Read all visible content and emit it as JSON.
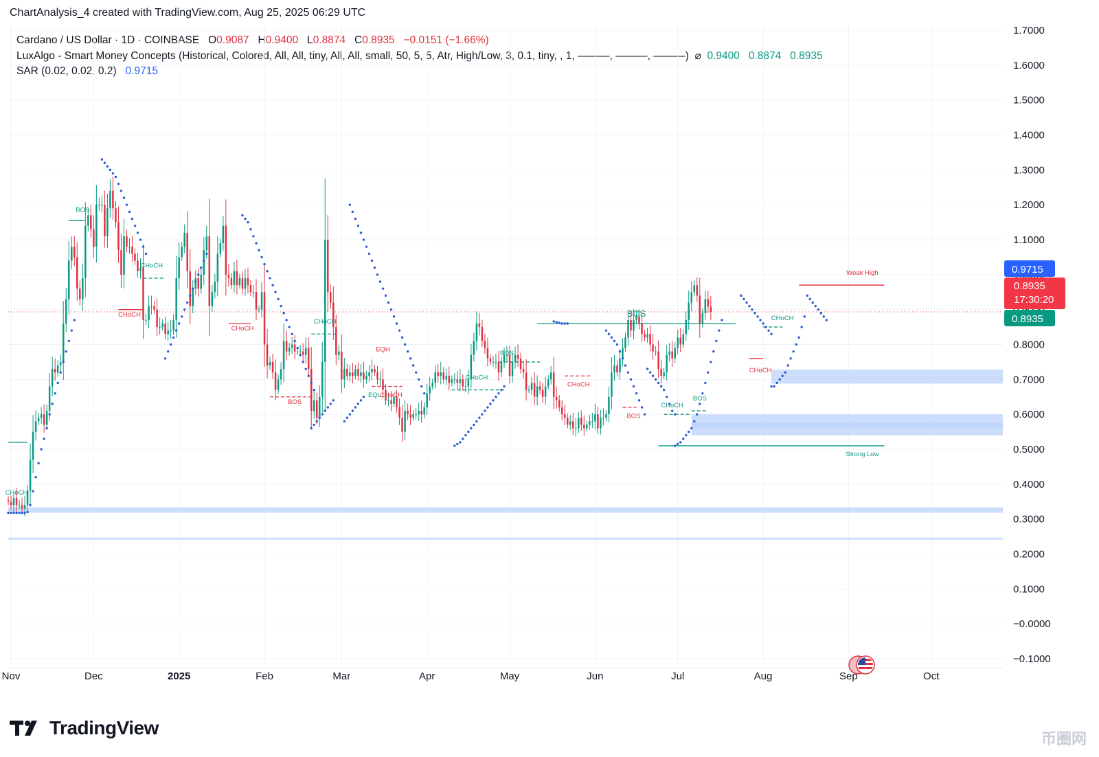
{
  "header": {
    "created_line": "ChartAnalysis_4 created with TradingView.com, Aug 25, 2025 06:29 UTC"
  },
  "legend": {
    "symbol": "Cardano / US Dollar · 1D · COINBASE",
    "o_label": "O",
    "o_value": "0.9087",
    "h_label": "H",
    "h_value": "0.9400",
    "l_label": "L",
    "l_value": "0.8874",
    "c_label": "C",
    "c_value": "0.8935",
    "change": "−0.0151 (−1.66%)",
    "indicator": "LuxAlgo - Smart Money Concepts (Historical, Colored, All, All, tiny, All, All, small, 50, 5, 5, Atr, High/Low, 3, 0.1, tiny, , 1, ———, ———, ———)",
    "indicator_symbol": "⌀",
    "indicator_values": [
      "0.9400",
      "0.8874",
      "0.8935"
    ],
    "sar_label": "SAR (0.02, 0.02, 0.2)",
    "sar_value": "0.9715"
  },
  "price_tags": {
    "sar": "0.9715",
    "last_price": "0.8935",
    "countdown": "17:30:20",
    "close": "0.8935"
  },
  "footer": {
    "logo_text": "TradingView",
    "watermark": "币圈网"
  },
  "colors": {
    "up": "#089981",
    "down": "#e0303f",
    "sar": "#2a5bd7",
    "zone": "#bcd3fb"
  },
  "chart_data": {
    "type": "candlestick",
    "ylim": [
      -0.1,
      1.7
    ],
    "y_ticks": [
      "1.7000",
      "1.6000",
      "1.5000",
      "1.4000",
      "1.3000",
      "1.2000",
      "1.1000",
      "1.0000",
      "0.9000",
      "0.8000",
      "0.7000",
      "0.6000",
      "0.5000",
      "0.4000",
      "0.3000",
      "0.2000",
      "0.1000",
      "−0.0000",
      "−0.1000"
    ],
    "y_tick_values": [
      1.7,
      1.6,
      1.5,
      1.4,
      1.3,
      1.2,
      1.1,
      1.0,
      0.9,
      0.8,
      0.7,
      0.6,
      0.5,
      0.4,
      0.3,
      0.2,
      0.1,
      0.0,
      -0.1
    ],
    "x_ticks": [
      "Nov",
      "Dec",
      "2025",
      "Feb",
      "Mar",
      "Apr",
      "May",
      "Jun",
      "Jul",
      "Aug",
      "Sep",
      "Oct"
    ],
    "x_tick_dates": [
      "2024-11-01",
      "2024-12-01",
      "2025-01-01",
      "2025-02-01",
      "2025-03-01",
      "2025-04-01",
      "2025-05-01",
      "2025-06-01",
      "2025-07-01",
      "2025-08-01",
      "2025-09-01",
      "2025-10-01"
    ],
    "x_range": [
      "2024-10-31",
      "2025-10-27"
    ],
    "date_start": "2024-10-31",
    "current_close": 0.8935,
    "closes": [
      0.35,
      0.34,
      0.36,
      0.34,
      0.34,
      0.33,
      0.34,
      0.38,
      0.47,
      0.55,
      0.58,
      0.59,
      0.6,
      0.57,
      0.61,
      0.68,
      0.73,
      0.72,
      0.74,
      0.75,
      0.86,
      0.93,
      1.04,
      1.08,
      1.05,
      0.96,
      0.93,
      0.99,
      1.14,
      1.17,
      1.13,
      1.08,
      1.2,
      1.2,
      1.2,
      1.11,
      1.19,
      1.24,
      1.19,
      1.15,
      1.07,
      1.0,
      1.11,
      1.08,
      1.08,
      1.06,
      1.04,
      1.01,
      1.02,
      0.87,
      0.87,
      0.91,
      0.91,
      0.9,
      0.85,
      0.85,
      0.86,
      0.83,
      0.84,
      0.84,
      0.87,
      0.99,
      1.05,
      1.08,
      1.12,
      1.01,
      0.91,
      0.96,
      0.99,
      0.96,
      1.0,
      1.07,
      1.11,
      0.91,
      0.95,
      0.98,
      1.06,
      1.09,
      1.14,
      1.0,
      0.99,
      0.97,
      1.01,
      0.97,
      0.99,
      0.96,
      0.99,
      0.97,
      0.95,
      0.95,
      0.9,
      0.9,
      0.95,
      0.8,
      0.74,
      0.75,
      0.72,
      0.67,
      0.7,
      0.73,
      0.81,
      0.78,
      0.79,
      0.8,
      0.78,
      0.78,
      0.78,
      0.77,
      0.79,
      0.73,
      0.61,
      0.64,
      0.59,
      0.65,
      0.75,
      1.1,
      0.95,
      0.92,
      0.85,
      0.77,
      0.78,
      0.7,
      0.73,
      0.71,
      0.72,
      0.71,
      0.73,
      0.71,
      0.72,
      0.7,
      0.71,
      0.72,
      0.73,
      0.72,
      0.7,
      0.7,
      0.67,
      0.64,
      0.64,
      0.63,
      0.65,
      0.62,
      0.59,
      0.55,
      0.61,
      0.6,
      0.59,
      0.6,
      0.6,
      0.61,
      0.6,
      0.62,
      0.66,
      0.68,
      0.69,
      0.72,
      0.71,
      0.72,
      0.7,
      0.71,
      0.69,
      0.7,
      0.7,
      0.69,
      0.7,
      0.68,
      0.68,
      0.7,
      0.77,
      0.81,
      0.86,
      0.85,
      0.81,
      0.79,
      0.76,
      0.75,
      0.75,
      0.75,
      0.72,
      0.75,
      0.77,
      0.77,
      0.71,
      0.75,
      0.77,
      0.76,
      0.73,
      0.72,
      0.67,
      0.67,
      0.69,
      0.65,
      0.68,
      0.67,
      0.65,
      0.68,
      0.7,
      0.72,
      0.65,
      0.64,
      0.62,
      0.6,
      0.59,
      0.57,
      0.58,
      0.56,
      0.56,
      0.59,
      0.57,
      0.56,
      0.57,
      0.58,
      0.58,
      0.6,
      0.56,
      0.59,
      0.59,
      0.6,
      0.65,
      0.72,
      0.74,
      0.72,
      0.76,
      0.79,
      0.82,
      0.87,
      0.84,
      0.87,
      0.88,
      0.86,
      0.83,
      0.82,
      0.83,
      0.8,
      0.78,
      0.78,
      0.73,
      0.71,
      0.72,
      0.77,
      0.78,
      0.76,
      0.79,
      0.82,
      0.8,
      0.83,
      0.87,
      0.92,
      0.95,
      0.97,
      0.94,
      0.86,
      0.89,
      0.93,
      0.9087,
      0.8935
    ],
    "sar_segments": [
      {
        "start": "2024-10-31",
        "values": [
          0.318,
          0.318,
          0.318,
          0.318,
          0.318,
          0.318,
          0.318,
          0.32,
          0.34,
          0.38,
          0.42,
          0.46,
          0.5,
          0.53,
          0.56,
          0.6,
          0.63,
          0.66,
          0.69,
          0.72,
          0.75,
          0.78,
          0.81,
          0.84,
          0.87
        ]
      },
      {
        "start": "2024-12-04",
        "values": [
          1.33,
          1.32,
          1.31,
          1.3,
          1.29,
          1.28,
          1.26,
          1.24,
          1.22,
          1.2,
          1.18,
          1.16,
          1.14,
          1.12,
          1.1,
          1.08,
          1.06
        ]
      },
      {
        "start": "2024-12-27",
        "values": [
          0.76,
          0.78,
          0.8,
          0.82,
          0.84,
          0.86,
          0.88,
          0.9,
          0.92,
          0.94,
          0.96,
          0.98,
          1.0,
          1.02,
          1.04,
          1.06
        ]
      },
      {
        "start": "2025-01-24",
        "values": [
          1.17,
          1.16,
          1.15,
          1.13,
          1.11,
          1.09,
          1.07,
          1.05,
          1.03,
          1.01,
          0.99,
          0.97,
          0.95,
          0.93,
          0.91,
          0.89,
          0.87,
          0.85,
          0.83,
          0.81,
          0.79,
          0.77,
          0.75,
          0.73,
          0.71,
          0.69,
          0.67
        ]
      },
      {
        "start": "2025-02-18",
        "values": [
          0.56,
          0.57,
          0.58,
          0.59,
          0.6,
          0.61,
          0.62,
          0.63,
          0.64
        ]
      },
      {
        "start": "2025-03-02",
        "values": [
          0.58,
          0.59,
          0.6,
          0.61,
          0.62,
          0.63,
          0.64,
          0.65
        ]
      },
      {
        "start": "2025-03-04",
        "values": [
          1.2,
          1.18,
          1.16,
          1.14,
          1.12,
          1.1,
          1.08,
          1.06,
          1.04,
          1.02,
          1.0,
          0.98,
          0.96,
          0.94,
          0.92,
          0.9,
          0.88,
          0.86,
          0.84,
          0.82,
          0.8,
          0.78,
          0.76,
          0.74,
          0.72,
          0.7,
          0.68,
          0.66
        ]
      },
      {
        "start": "2025-04-11",
        "values": [
          0.51,
          0.515,
          0.52,
          0.53,
          0.54,
          0.55,
          0.56,
          0.57,
          0.58,
          0.59,
          0.6,
          0.61,
          0.62,
          0.63,
          0.64,
          0.65,
          0.66,
          0.67,
          0.68
        ]
      },
      {
        "start": "2025-05-17",
        "values": [
          0.866,
          0.864,
          0.862,
          0.86,
          0.86,
          0.86
        ]
      },
      {
        "start": "2025-06-05",
        "values": [
          0.84,
          0.83,
          0.82,
          0.81,
          0.8,
          0.78,
          0.76,
          0.74,
          0.72,
          0.7,
          0.68,
          0.66,
          0.64,
          0.62,
          0.6
        ]
      },
      {
        "start": "2025-06-20",
        "values": [
          0.73,
          0.72,
          0.71,
          0.7,
          0.69,
          0.68,
          0.67,
          0.65,
          0.63,
          0.61,
          0.6
        ]
      },
      {
        "start": "2025-06-30",
        "values": [
          0.51,
          0.515,
          0.52,
          0.53,
          0.54,
          0.55,
          0.56,
          0.58,
          0.6,
          0.63,
          0.66,
          0.69,
          0.72,
          0.75,
          0.78,
          0.81,
          0.84,
          0.87
        ]
      },
      {
        "start": "2025-07-24",
        "values": [
          0.94,
          0.93,
          0.92,
          0.91,
          0.9,
          0.89,
          0.88,
          0.87,
          0.86,
          0.85,
          0.84,
          0.83
        ]
      },
      {
        "start": "2025-08-04",
        "values": [
          0.68,
          0.68,
          0.69,
          0.7,
          0.71,
          0.72,
          0.74,
          0.76,
          0.78,
          0.8,
          0.82,
          0.85,
          0.88
        ]
      },
      {
        "start": "2025-08-17",
        "values": [
          0.94,
          0.93,
          0.92,
          0.91,
          0.9,
          0.89,
          0.88,
          0.87
        ]
      }
    ],
    "zones": [
      {
        "from": "2025-08-04",
        "to": "2025-10-27",
        "low": 0.688,
        "high": 0.728
      },
      {
        "from": "2025-07-06",
        "to": "2025-10-27",
        "low": 0.54,
        "high": 0.6
      },
      {
        "from": "2025-07-06",
        "to": "2025-10-27",
        "low": 0.56,
        "high": 0.577
      },
      {
        "from": "2024-10-31",
        "to": "2025-10-27",
        "low": 0.318,
        "high": 0.334
      },
      {
        "from": "2024-10-31",
        "to": "2025-10-27",
        "low": 0.241,
        "high": 0.247
      }
    ],
    "structure_lines": [
      {
        "from": "2024-10-31",
        "to": "2024-11-07",
        "y": 0.52,
        "color": "up",
        "style": "solid"
      },
      {
        "from": "2024-11-22",
        "to": "2024-11-28",
        "y": 1.155,
        "color": "up",
        "style": "solid"
      },
      {
        "from": "2024-12-10",
        "to": "2024-12-19",
        "y": 0.9,
        "color": "down",
        "style": "solid"
      },
      {
        "from": "2024-12-19",
        "to": "2024-12-27",
        "y": 0.99,
        "color": "up",
        "style": "dashed"
      },
      {
        "from": "2025-01-19",
        "to": "2025-01-27",
        "y": 0.86,
        "color": "down",
        "style": "solid"
      },
      {
        "from": "2025-02-03",
        "to": "2025-02-18",
        "y": 0.65,
        "color": "down",
        "style": "dashed"
      },
      {
        "from": "2025-02-18",
        "to": "2025-02-28",
        "y": 0.83,
        "color": "up",
        "style": "dashed"
      },
      {
        "from": "2025-03-12",
        "to": "2025-03-23",
        "y": 0.68,
        "color": "down",
        "style": "dashed"
      },
      {
        "from": "2025-04-10",
        "to": "2025-04-29",
        "y": 0.67,
        "color": "up",
        "style": "dashed"
      },
      {
        "from": "2025-04-27",
        "to": "2025-05-12",
        "y": 0.75,
        "color": "up",
        "style": "dashed"
      },
      {
        "from": "2025-05-11",
        "to": "2025-07-22",
        "y": 0.86,
        "color": "up",
        "style": "solid"
      },
      {
        "from": "2025-05-21",
        "to": "2025-05-31",
        "y": 0.71,
        "color": "down",
        "style": "dashed"
      },
      {
        "from": "2025-06-11",
        "to": "2025-06-16",
        "y": 0.62,
        "color": "down",
        "style": "dashed"
      },
      {
        "from": "2025-06-24",
        "to": "2025-07-08",
        "y": 0.51,
        "color": "up",
        "style": "solid"
      },
      {
        "from": "2025-07-08",
        "to": "2025-09-14",
        "y": 0.51,
        "color": "up",
        "style": "solid"
      },
      {
        "from": "2025-06-26",
        "to": "2025-07-06",
        "y": 0.6,
        "color": "up",
        "style": "dashed"
      },
      {
        "from": "2025-07-06",
        "to": "2025-07-12",
        "y": 0.61,
        "color": "up",
        "style": "dashed"
      },
      {
        "from": "2025-07-27",
        "to": "2025-08-01",
        "y": 0.76,
        "color": "down",
        "style": "solid"
      },
      {
        "from": "2025-08-01",
        "to": "2025-08-08",
        "y": 0.85,
        "color": "up",
        "style": "dashed"
      },
      {
        "from": "2025-08-14",
        "to": "2025-09-14",
        "y": 0.97,
        "color": "down",
        "style": "solid"
      }
    ],
    "labels": [
      {
        "text": "BOS",
        "date": "2024-11-27",
        "y": 1.18,
        "color": "up"
      },
      {
        "text": "CHoCH",
        "date": "2024-11-03",
        "y": 0.37,
        "color": "up"
      },
      {
        "text": "CHoCH",
        "date": "2024-12-14",
        "y": 0.88,
        "color": "down"
      },
      {
        "text": "CHoCH",
        "date": "2024-12-22",
        "y": 1.02,
        "color": "up"
      },
      {
        "text": "CHoCH",
        "date": "2025-01-24",
        "y": 0.84,
        "color": "down"
      },
      {
        "text": "CHoCH",
        "date": "2025-02-23",
        "y": 0.86,
        "color": "up"
      },
      {
        "text": "BOS",
        "date": "2025-02-12",
        "y": 0.63,
        "color": "down"
      },
      {
        "text": "EQH",
        "date": "2025-03-16",
        "y": 0.78,
        "color": "down"
      },
      {
        "text": "EQL",
        "date": "2025-03-13",
        "y": 0.65,
        "color": "up"
      },
      {
        "text": "CHoCH",
        "date": "2025-03-19",
        "y": 0.65,
        "color": "down"
      },
      {
        "text": "CHoCH",
        "date": "2025-04-19",
        "y": 0.7,
        "color": "up"
      },
      {
        "text": "BOS",
        "date": "2025-04-30",
        "y": 0.77,
        "color": "up"
      },
      {
        "text": "BOS",
        "date": "2025-06-16",
        "y": 0.88,
        "color": "up",
        "large": true
      },
      {
        "text": "CHoCH",
        "date": "2025-05-26",
        "y": 0.68,
        "color": "down"
      },
      {
        "text": "BOS",
        "date": "2025-06-15",
        "y": 0.59,
        "color": "down"
      },
      {
        "text": "CHoCH",
        "date": "2025-06-29",
        "y": 0.62,
        "color": "up"
      },
      {
        "text": "BOS",
        "date": "2025-07-09",
        "y": 0.64,
        "color": "up"
      },
      {
        "text": "CHoCH",
        "date": "2025-07-31",
        "y": 0.72,
        "color": "down"
      },
      {
        "text": "CHoCH",
        "date": "2025-08-08",
        "y": 0.87,
        "color": "up"
      },
      {
        "text": "Weak High",
        "date": "2025-09-06",
        "y": 1.0,
        "color": "down"
      },
      {
        "text": "Strong Low",
        "date": "2025-09-06",
        "y": 0.48,
        "color": "up"
      }
    ]
  }
}
